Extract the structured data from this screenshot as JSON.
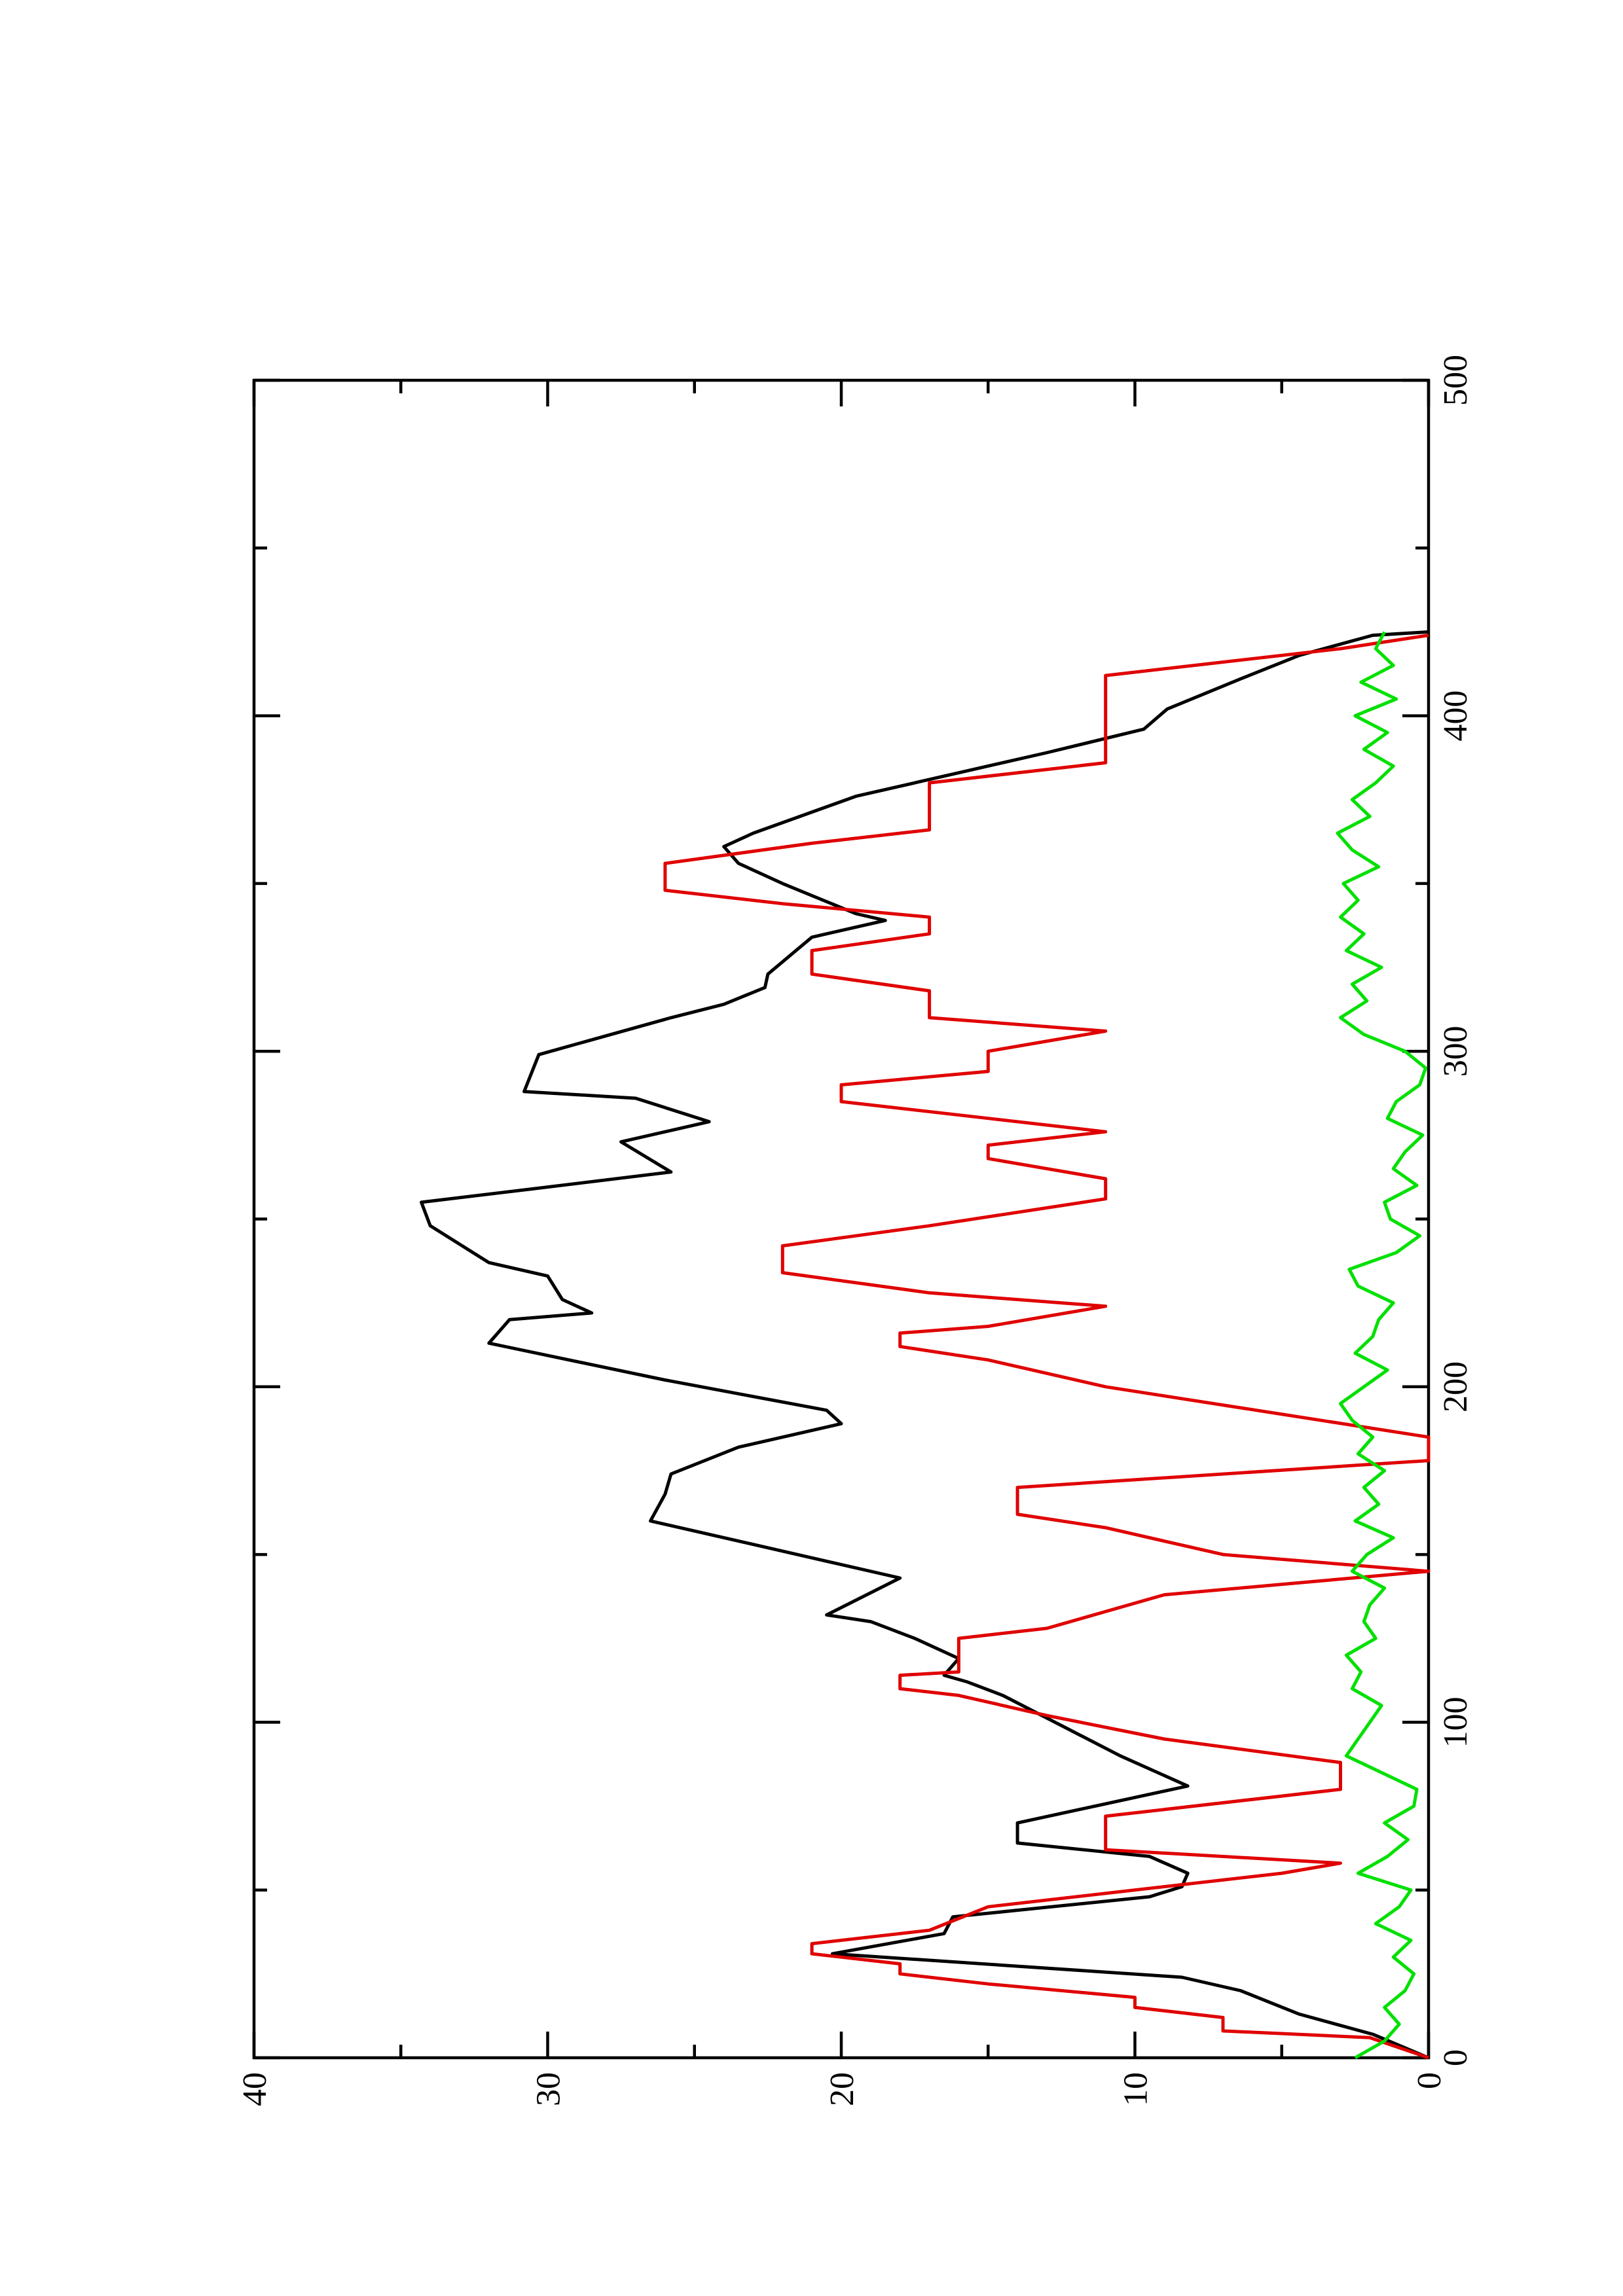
{
  "chart_data": {
    "type": "line",
    "xlim": [
      0,
      500
    ],
    "xticks": [
      0,
      100,
      200,
      300,
      400,
      500
    ],
    "xminorticks": [
      50,
      150,
      250,
      350,
      450
    ],
    "ylim": [
      0,
      40
    ],
    "yticks": [
      0,
      10,
      20,
      30,
      40
    ],
    "yminorticks": [
      5,
      15,
      25,
      35
    ],
    "orientation": "rotated",
    "series": [
      {
        "color": "#000000",
        "x": [
          0,
          7,
          13,
          20,
          24,
          31,
          37,
          42,
          48,
          51,
          55,
          60,
          64,
          70,
          81,
          90,
          99,
          108,
          112,
          114,
          119,
          125,
          130,
          132,
          143,
          152,
          160,
          168,
          174,
          182,
          189,
          193,
          202,
          213,
          220,
          222,
          226,
          233,
          237,
          248,
          255,
          259,
          264,
          273,
          279,
          286,
          288,
          299,
          310,
          314,
          319,
          323,
          334,
          339,
          341,
          350,
          356,
          361,
          365,
          376,
          383,
          389,
          396,
          402,
          411,
          418,
          424,
          425
        ],
        "values": [
          0,
          1.9,
          4.4,
          6.4,
          8.4,
          20.3,
          16.5,
          16.2,
          9.5,
          8.4,
          8.2,
          9.5,
          14,
          14,
          8.2,
          10.5,
          12.5,
          14.5,
          15.7,
          16.5,
          16,
          17.5,
          19,
          20.5,
          18,
          22.5,
          26.5,
          26,
          25.8,
          23.5,
          20,
          20.5,
          26,
          32,
          31.3,
          28.5,
          29.5,
          30,
          32,
          34,
          34.3,
          30.5,
          25.8,
          27.5,
          24.5,
          27,
          30.8,
          30.3,
          25.8,
          24,
          22.6,
          22.5,
          21,
          18.5,
          19.5,
          22,
          23.5,
          24,
          23,
          19.5,
          16,
          13,
          9.7,
          8.9,
          6.4,
          4.4,
          1.9,
          0
        ]
      },
      {
        "color": "#e00000",
        "x": [
          0,
          6,
          8,
          12,
          15,
          18,
          22,
          25,
          28,
          31,
          34,
          38,
          45,
          55,
          58,
          62,
          68,
          72,
          80,
          88,
          95,
          102,
          108,
          110,
          114,
          115,
          125,
          128,
          138,
          145,
          150,
          158,
          162,
          170,
          178,
          185,
          200,
          208,
          212,
          216,
          218,
          224,
          228,
          234,
          242,
          248,
          256,
          262,
          268,
          272,
          276,
          280,
          285,
          290,
          294,
          300,
          306,
          310,
          318,
          323,
          330,
          335,
          340,
          344,
          348,
          356,
          362,
          366,
          372,
          380,
          386,
          400,
          412,
          420,
          424
        ],
        "values": [
          0,
          2,
          7,
          7,
          10,
          10,
          15,
          18,
          18,
          21,
          21,
          17,
          15,
          5,
          3,
          11,
          11,
          11,
          3,
          3,
          9,
          13,
          16,
          18,
          18,
          16,
          16,
          13,
          9,
          0,
          7,
          11,
          14,
          14,
          0,
          0,
          11,
          15,
          18,
          18,
          15,
          11,
          17,
          22,
          22,
          17,
          11,
          11,
          15,
          15,
          11,
          15,
          20,
          20,
          15,
          15,
          11,
          17,
          17,
          21,
          21,
          17,
          17,
          22,
          26,
          26,
          21,
          17,
          17,
          17,
          11,
          11,
          11,
          3,
          0
        ]
      },
      {
        "color": "#00e000",
        "x": [
          0,
          5,
          10,
          15,
          20,
          25,
          30,
          35,
          40,
          45,
          50,
          55,
          60,
          65,
          70,
          75,
          80,
          85,
          90,
          95,
          100,
          105,
          110,
          115,
          120,
          125,
          130,
          135,
          140,
          145,
          150,
          155,
          160,
          165,
          170,
          175,
          180,
          185,
          190,
          195,
          200,
          205,
          210,
          215,
          220,
          225,
          230,
          235,
          240,
          245,
          250,
          255,
          260,
          265,
          270,
          275,
          280,
          285,
          290,
          295,
          300,
          305,
          310,
          315,
          320,
          325,
          330,
          335,
          340,
          345,
          350,
          355,
          360,
          365,
          370,
          375,
          380,
          385,
          390,
          395,
          400,
          405,
          410,
          415,
          420,
          425
        ],
        "values": [
          2.5,
          1.5,
          1,
          1.5,
          0.8,
          0.5,
          1.2,
          0.6,
          1.8,
          1,
          0.6,
          2.4,
          1.4,
          0.7,
          1.5,
          0.5,
          0.4,
          1.6,
          2.8,
          2.4,
          2,
          1.6,
          2.6,
          2.3,
          2.8,
          1.8,
          2.2,
          2,
          1.5,
          2.6,
          2.1,
          1.2,
          2.5,
          1.7,
          2.2,
          1.5,
          2.4,
          1.9,
          2.6,
          3,
          2.2,
          1.4,
          2.5,
          1.9,
          1.7,
          1.2,
          2.4,
          2.7,
          1.1,
          0.3,
          1.3,
          1.5,
          0.4,
          1.2,
          0.8,
          0.2,
          1.4,
          1.1,
          0.3,
          0.1,
          0.8,
          2.2,
          3,
          2.1,
          2.6,
          1.6,
          2.8,
          2.2,
          3,
          2.4,
          2.9,
          1.7,
          2.6,
          3.1,
          2,
          2.6,
          1.8,
          1.2,
          2.2,
          1.4,
          2.5,
          1.1,
          2.3,
          1.2,
          1.8,
          1.5
        ]
      }
    ]
  }
}
